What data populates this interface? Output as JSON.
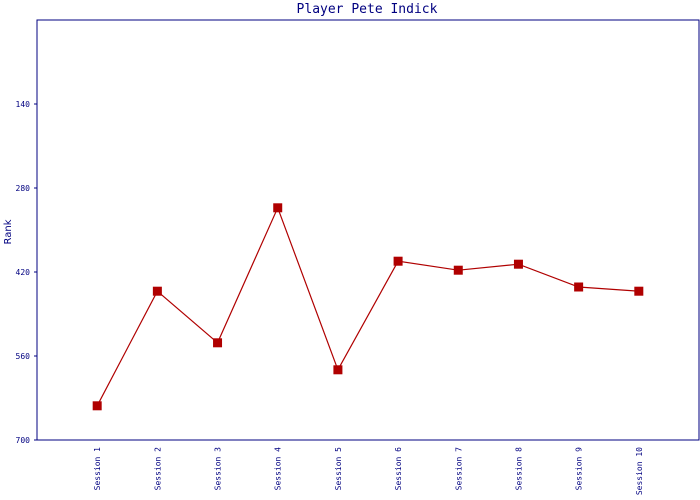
{
  "chart_data": {
    "type": "line",
    "title": "Player Pete Indick",
    "y_label": "Rank",
    "categories": [
      "Session 1",
      "Session 2",
      "Session 3",
      "Session 4",
      "Session 5",
      "Session 6",
      "Session 7",
      "Session 8",
      "Session 9",
      "Session 10"
    ],
    "series": [
      {
        "name": "Rank",
        "color": "#b00000",
        "values": [
          643,
          452,
          538,
          313,
          583,
          402,
          417,
          407,
          445,
          452
        ]
      }
    ],
    "ylim": [
      700,
      0
    ],
    "yticks": [
      140,
      280,
      420,
      560,
      700
    ],
    "grid": false
  }
}
